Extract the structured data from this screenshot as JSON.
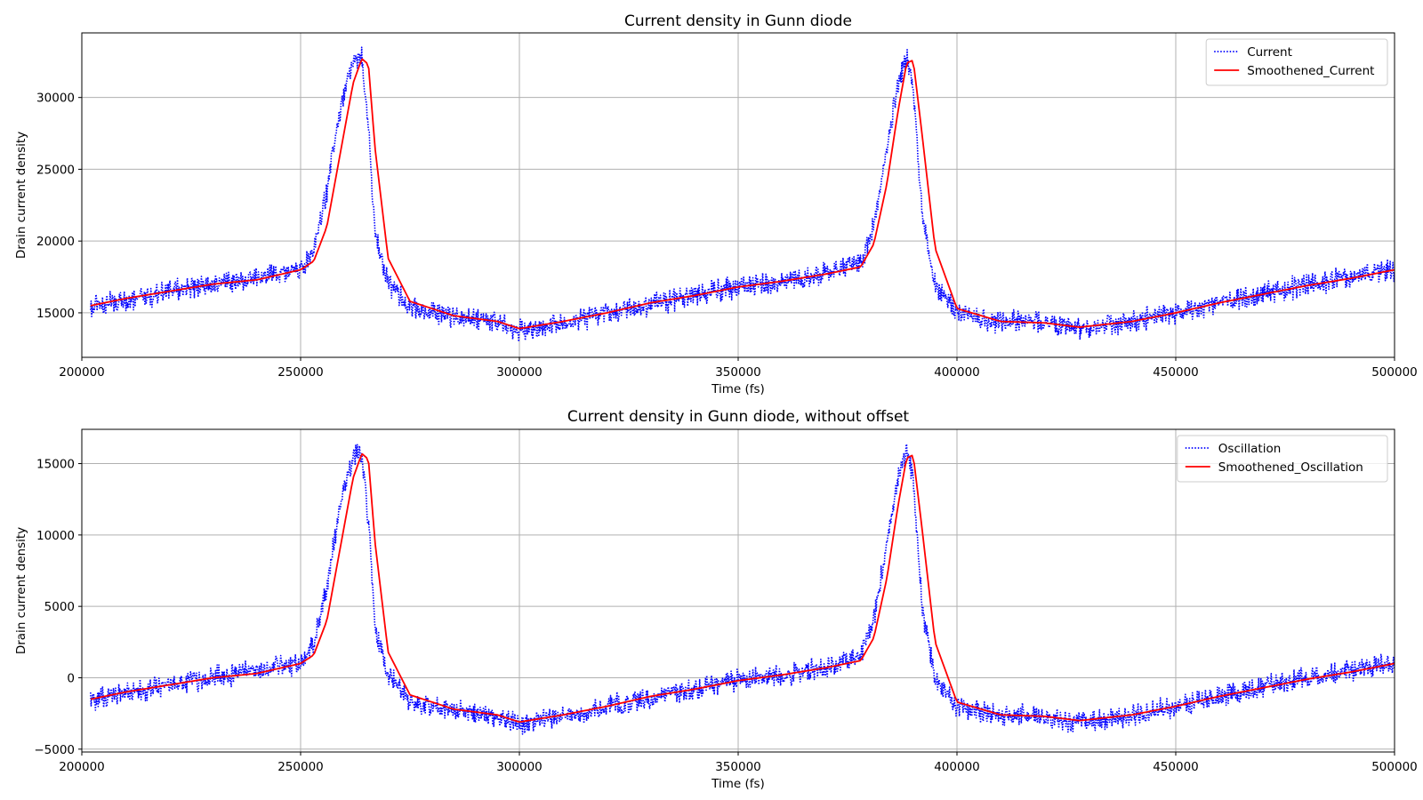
{
  "chart_data": [
    {
      "type": "line",
      "title": "Current density in Gunn diode",
      "xlabel": "Time (fs)",
      "ylabel": "Drain current density",
      "xlim": [
        200000,
        500000
      ],
      "ylim": [
        11900,
        34500
      ],
      "xticks": [
        200000,
        250000,
        300000,
        350000,
        400000,
        450000,
        500000
      ],
      "yticks": [
        15000,
        20000,
        25000,
        30000
      ],
      "grid": true,
      "legend_position": "upper right",
      "series": [
        {
          "name": "Current",
          "style": "dotted",
          "color": "#0000ff",
          "noise_amplitude": 900,
          "x": [
            202000,
            210000,
            220000,
            230000,
            240000,
            250000,
            253000,
            256000,
            259000,
            262000,
            264000,
            265500,
            267000,
            270000,
            275000,
            285000,
            295000,
            300000,
            310000,
            320000,
            330000,
            340000,
            350000,
            360000,
            370000,
            378000,
            381000,
            384000,
            386500,
            388500,
            390000,
            392000,
            395000,
            400000,
            410000,
            420000,
            428000,
            440000,
            450000,
            460000,
            470000,
            480000,
            490000,
            500000
          ],
          "y": [
            15400,
            15900,
            16500,
            17000,
            17500,
            18000,
            19300,
            23500,
            29000,
            32500,
            32800,
            28000,
            20500,
            17200,
            15300,
            14700,
            14300,
            13800,
            14300,
            15000,
            15600,
            16200,
            16800,
            17200,
            17700,
            18500,
            21000,
            26500,
            31000,
            32800,
            31000,
            22000,
            16800,
            15000,
            14400,
            14300,
            13900,
            14400,
            15000,
            15700,
            16300,
            17000,
            17500,
            18000
          ]
        },
        {
          "name": "Smoothened_Current",
          "style": "solid",
          "color": "#ff0000",
          "x": [
            202000,
            210000,
            220000,
            230000,
            240000,
            250000,
            253000,
            256000,
            259000,
            262000,
            264000,
            265500,
            267000,
            270000,
            275000,
            285000,
            295000,
            300000,
            310000,
            320000,
            330000,
            340000,
            350000,
            360000,
            370000,
            378000,
            381000,
            384000,
            386500,
            388500,
            390000,
            392000,
            395000,
            400000,
            410000,
            420000,
            428000,
            440000,
            450000,
            460000,
            470000,
            480000,
            490000,
            500000
          ],
          "y": [
            15500,
            16000,
            16500,
            17000,
            17300,
            18000,
            18600,
            21000,
            26000,
            31000,
            32700,
            32300,
            26500,
            18800,
            15800,
            14800,
            14400,
            13900,
            14400,
            15000,
            15700,
            16200,
            16800,
            17200,
            17700,
            18200,
            19800,
            24000,
            29000,
            32400,
            32600,
            27500,
            19500,
            15300,
            14400,
            14300,
            14000,
            14400,
            15000,
            15700,
            16300,
            16900,
            17400,
            18000
          ]
        }
      ]
    },
    {
      "type": "line",
      "title": "Current density in Gunn diode, without offset",
      "xlabel": "Time (fs)",
      "ylabel": "Drain current density",
      "xlim": [
        200000,
        500000
      ],
      "ylim": [
        -5200,
        17400
      ],
      "xticks": [
        200000,
        250000,
        300000,
        350000,
        400000,
        450000,
        500000
      ],
      "yticks": [
        -5000,
        0,
        5000,
        10000,
        15000
      ],
      "grid": true,
      "legend_position": "upper right",
      "series": [
        {
          "name": "Oscillation",
          "style": "dotted",
          "color": "#0000ff",
          "noise_amplitude": 900,
          "x": [
            202000,
            210000,
            220000,
            230000,
            240000,
            250000,
            253000,
            256000,
            259000,
            262000,
            264000,
            265500,
            267000,
            270000,
            275000,
            285000,
            295000,
            300000,
            310000,
            320000,
            330000,
            340000,
            350000,
            360000,
            370000,
            378000,
            381000,
            384000,
            386500,
            388500,
            390000,
            392000,
            395000,
            400000,
            410000,
            420000,
            428000,
            440000,
            450000,
            460000,
            470000,
            480000,
            490000,
            500000
          ],
          "y": [
            -1600,
            -1100,
            -500,
            0,
            500,
            1000,
            2300,
            6500,
            12000,
            15500,
            15800,
            11000,
            3500,
            200,
            -1700,
            -2300,
            -2700,
            -3200,
            -2700,
            -2000,
            -1400,
            -800,
            -200,
            200,
            700,
            1500,
            4000,
            9500,
            14000,
            15800,
            14000,
            5000,
            -200,
            -2000,
            -2600,
            -2700,
            -3100,
            -2600,
            -2000,
            -1300,
            -700,
            0,
            500,
            1000
          ]
        },
        {
          "name": "Smoothened_Oscillation",
          "style": "solid",
          "color": "#ff0000",
          "x": [
            202000,
            210000,
            220000,
            230000,
            240000,
            250000,
            253000,
            256000,
            259000,
            262000,
            264000,
            265500,
            267000,
            270000,
            275000,
            285000,
            295000,
            300000,
            310000,
            320000,
            330000,
            340000,
            350000,
            360000,
            370000,
            378000,
            381000,
            384000,
            386500,
            388500,
            390000,
            392000,
            395000,
            400000,
            410000,
            420000,
            428000,
            440000,
            450000,
            460000,
            470000,
            480000,
            490000,
            500000
          ],
          "y": [
            -1500,
            -1000,
            -500,
            0,
            300,
            1000,
            1600,
            4000,
            9000,
            14000,
            15700,
            15300,
            9500,
            1800,
            -1200,
            -2200,
            -2600,
            -3100,
            -2600,
            -2000,
            -1300,
            -800,
            -200,
            200,
            700,
            1200,
            2800,
            7000,
            12000,
            15400,
            15600,
            10500,
            2500,
            -1700,
            -2600,
            -2700,
            -3000,
            -2600,
            -2000,
            -1300,
            -700,
            -100,
            400,
            1000
          ]
        }
      ]
    }
  ]
}
